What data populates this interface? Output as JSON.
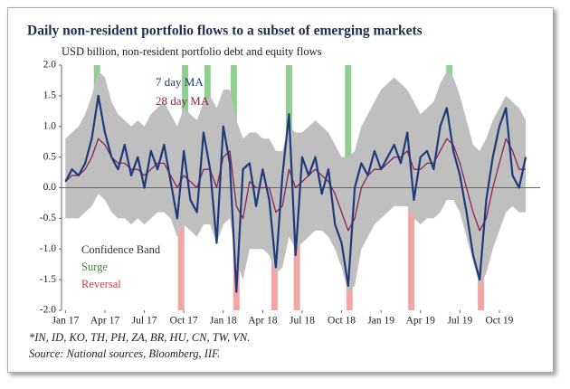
{
  "chart_data": {
    "type": "line",
    "title": "Daily non-resident portfolio flows to a subset of emerging markets",
    "subtitle": "USD billion, non-resident portfolio debt and equity flows",
    "footnotes": [
      "*IN, ID, KO, TH, PH, ZA, BR, HU, CN, TW, VN.",
      "Source: National sources, Bloomberg, IIF."
    ],
    "xlim": [
      -0.3,
      36.1
    ],
    "xticks": [
      {
        "value": 0,
        "label": "Jan 17"
      },
      {
        "value": 3,
        "label": "Apr 17"
      },
      {
        "value": 6,
        "label": "Jul 17"
      },
      {
        "value": 9,
        "label": "Oct 17"
      },
      {
        "value": 12,
        "label": "Jan 18"
      },
      {
        "value": 15,
        "label": "Apr 18"
      },
      {
        "value": 18,
        "label": "Jul 18"
      },
      {
        "value": 21,
        "label": "Oct 18"
      },
      {
        "value": 24,
        "label": "Jan 19"
      },
      {
        "value": 27,
        "label": "Apr 19"
      },
      {
        "value": 30,
        "label": "Jul 19"
      },
      {
        "value": 33,
        "label": "Oct 19"
      }
    ],
    "ylim": [
      -2,
      2
    ],
    "yticks": [
      {
        "value": 2,
        "label": "2.0"
      },
      1.5,
      {
        "value": 1,
        "label": "1.0"
      },
      0.5,
      {
        "value": 0,
        "label": "0.0"
      },
      -0.5,
      {
        "value": -1,
        "label": "-1.0"
      },
      -1.5,
      {
        "value": -2,
        "label": "-2.0"
      }
    ],
    "x": [
      0,
      0.5,
      1,
      1.5,
      2,
      2.5,
      3,
      3.5,
      4,
      4.5,
      5,
      5.5,
      6,
      6.5,
      7,
      7.5,
      8,
      8.5,
      9,
      9.5,
      10,
      10.5,
      11,
      11.5,
      12,
      12.5,
      13,
      13.5,
      14,
      14.5,
      15,
      15.5,
      16,
      16.5,
      17,
      17.5,
      18,
      18.5,
      19,
      19.5,
      20,
      20.5,
      21,
      21.5,
      22,
      22.5,
      23,
      23.5,
      24,
      24.5,
      25,
      25.5,
      26,
      26.5,
      27,
      27.5,
      28,
      28.5,
      29,
      29.5,
      30,
      30.5,
      31,
      31.5,
      32,
      32.5,
      33,
      33.5,
      34,
      34.5,
      35
    ],
    "series": [
      {
        "name": "7 day MA",
        "color": "#1f3a7a",
        "values": [
          0.1,
          0.3,
          0.2,
          0.4,
          0.8,
          1.5,
          0.9,
          0.5,
          0.3,
          0.7,
          0.2,
          0.5,
          0.0,
          0.6,
          0.3,
          0.7,
          0.1,
          -0.5,
          0.6,
          -0.2,
          -0.4,
          0.9,
          0.3,
          -0.9,
          1.0,
          0.4,
          -1.7,
          0.3,
          0.4,
          -0.3,
          0.3,
          -0.2,
          -1.3,
          0.2,
          1.2,
          -1.1,
          0.5,
          0.2,
          0.5,
          -0.1,
          0.3,
          -0.6,
          -0.9,
          -1.6,
          0.0,
          0.4,
          0.2,
          0.6,
          0.3,
          0.5,
          0.7,
          0.4,
          0.9,
          -0.2,
          0.5,
          0.6,
          0.3,
          1.0,
          1.3,
          0.6,
          0.2,
          -0.4,
          -1.1,
          -1.5,
          -0.2,
          0.5,
          1.0,
          1.3,
          0.2,
          0.0,
          0.5
        ]
      },
      {
        "name": "28 day MA",
        "color": "#8b2252",
        "values": [
          0.1,
          0.2,
          0.2,
          0.3,
          0.5,
          0.8,
          0.7,
          0.5,
          0.4,
          0.4,
          0.3,
          0.3,
          0.2,
          0.3,
          0.4,
          0.4,
          0.2,
          0.0,
          0.2,
          0.1,
          0.0,
          0.3,
          0.3,
          0.0,
          0.5,
          0.6,
          -0.3,
          -0.5,
          0.1,
          0.0,
          0.0,
          0.0,
          -0.4,
          -0.3,
          0.3,
          0.0,
          0.1,
          0.2,
          0.3,
          0.2,
          0.1,
          -0.1,
          -0.4,
          -0.7,
          -0.5,
          0.0,
          0.2,
          0.3,
          0.3,
          0.4,
          0.5,
          0.5,
          0.6,
          0.3,
          0.3,
          0.4,
          0.4,
          0.6,
          0.8,
          0.7,
          0.4,
          0.0,
          -0.4,
          -0.7,
          -0.5,
          0.0,
          0.4,
          0.8,
          0.6,
          0.3,
          0.3
        ]
      }
    ],
    "band": {
      "name": "Confidence Band",
      "color": "#bfbfbf",
      "upper": [
        0.8,
        0.9,
        1.0,
        1.2,
        1.5,
        1.9,
        1.8,
        1.4,
        1.2,
        1.1,
        1.0,
        1.1,
        1.0,
        1.2,
        1.3,
        1.4,
        1.2,
        1.0,
        1.3,
        1.2,
        1.1,
        1.4,
        1.5,
        1.3,
        1.6,
        1.6,
        1.1,
        0.8,
        0.9,
        0.9,
        0.8,
        0.8,
        0.6,
        0.6,
        1.0,
        0.9,
        0.9,
        1.0,
        1.1,
        1.0,
        0.9,
        0.7,
        0.5,
        0.5,
        0.6,
        1.0,
        1.2,
        1.4,
        1.6,
        1.7,
        1.8,
        1.7,
        1.6,
        1.4,
        1.2,
        1.3,
        1.4,
        1.7,
        1.9,
        1.8,
        1.5,
        1.1,
        0.7,
        0.6,
        0.8,
        1.1,
        1.3,
        1.5,
        1.4,
        1.3,
        1.1
      ],
      "lower": [
        -0.5,
        -0.5,
        -0.5,
        -0.4,
        -0.3,
        -0.1,
        -0.2,
        -0.4,
        -0.5,
        -0.5,
        -0.6,
        -0.5,
        -0.6,
        -0.5,
        -0.4,
        -0.4,
        -0.5,
        -0.8,
        -0.6,
        -0.7,
        -0.8,
        -0.6,
        -0.6,
        -0.9,
        -0.6,
        -0.5,
        -1.2,
        -1.5,
        -1.0,
        -1.0,
        -1.0,
        -1.1,
        -1.4,
        -1.3,
        -0.8,
        -1.0,
        -0.9,
        -0.8,
        -0.7,
        -0.7,
        -0.8,
        -1.0,
        -1.3,
        -1.7,
        -1.6,
        -1.0,
        -0.8,
        -0.6,
        -0.5,
        -0.4,
        -0.3,
        -0.3,
        -0.3,
        -0.5,
        -0.6,
        -0.5,
        -0.5,
        -0.4,
        -0.2,
        -0.2,
        -0.4,
        -0.8,
        -1.2,
        -1.6,
        -1.4,
        -1.0,
        -0.7,
        -0.4,
        -0.3,
        -0.4,
        -0.4
      ]
    },
    "surge": {
      "name": "Surge",
      "color": "#8fcf8f",
      "x": [
        2.4,
        9.1,
        10.8,
        12.8,
        17.0,
        21.5,
        29.2
      ]
    },
    "reversal": {
      "name": "Reversal",
      "color": "#f4a6a6",
      "x": [
        8.8,
        13.0,
        15.9,
        17.6,
        21.6,
        26.3,
        31.6
      ]
    }
  }
}
